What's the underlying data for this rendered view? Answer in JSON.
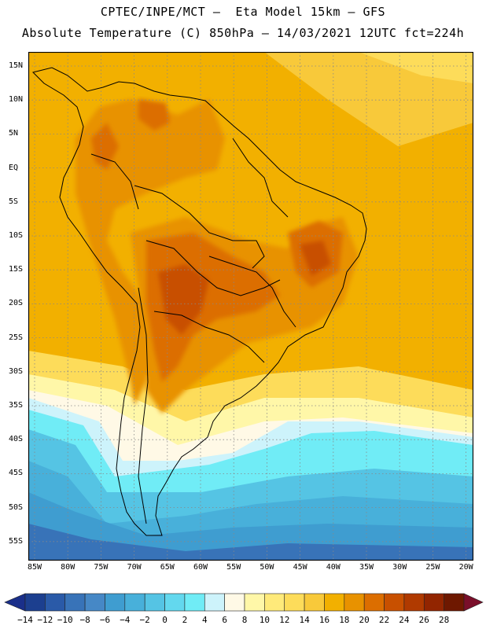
{
  "header": {
    "line1": "CPTEC/INPE/MCT –  Eta Model 15km – GFS",
    "line2": "Absolute Temperature (C) 850hPa – 14/03/2021 12UTC fct=224h"
  },
  "map": {
    "lat_labels": [
      "15N",
      "10N",
      "5N",
      "EQ",
      "5S",
      "10S",
      "15S",
      "20S",
      "25S",
      "30S",
      "35S",
      "40S",
      "45S",
      "50S",
      "55S"
    ],
    "lon_labels": [
      "85W",
      "80W",
      "75W",
      "70W",
      "65W",
      "60W",
      "55W",
      "50W",
      "45W",
      "40W",
      "35W",
      "30W",
      "25W",
      "20W"
    ],
    "colors": {
      "gridline": "#888888",
      "border": "#000000"
    }
  },
  "colorbar": {
    "labels": [
      "-14",
      "-12",
      "-10",
      "-8",
      "-6",
      "-4",
      "-2",
      "0",
      "2",
      "4",
      "6",
      "8",
      "10",
      "12",
      "14",
      "16",
      "18",
      "20",
      "22",
      "24",
      "26",
      "28"
    ],
    "colors": [
      "#1c3f8f",
      "#2a5aa8",
      "#3873b8",
      "#4688c6",
      "#3f9dd0",
      "#48b0da",
      "#55c4e4",
      "#63d8ee",
      "#70ecf6",
      "#cdf3fb",
      "#fff9e6",
      "#fff7a8",
      "#ffea7a",
      "#fddc5a",
      "#f8c93a",
      "#f2b000",
      "#e89200",
      "#dc6e00",
      "#c85000",
      "#b03a00",
      "#922500",
      "#6e1800"
    ],
    "under_color": "#1a2f8a",
    "over_color": "#7a0f2a"
  }
}
